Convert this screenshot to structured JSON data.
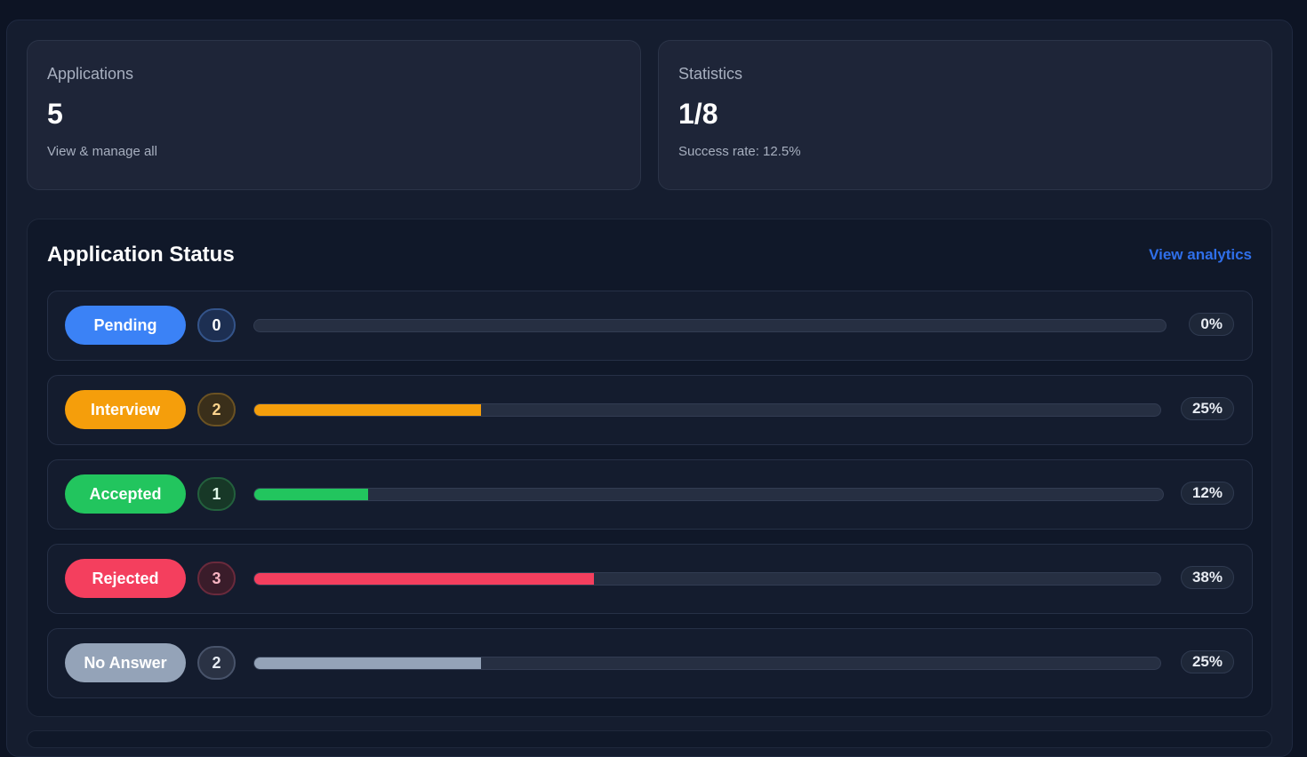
{
  "cards": {
    "applications": {
      "label": "Applications",
      "value": "5",
      "sub": "View & manage all"
    },
    "statistics": {
      "label": "Statistics",
      "value": "1/8",
      "sub": "Success rate: 12.5%"
    }
  },
  "status": {
    "title": "Application Status",
    "link": "View analytics",
    "rows": [
      {
        "label": "Pending",
        "count": "0",
        "percent": "0%",
        "progress": 0,
        "color": "#3b82f6",
        "count_bg": "#1d2f52",
        "count_border": "#34548a",
        "count_fg": "#ffffff"
      },
      {
        "label": "Interview",
        "count": "2",
        "percent": "25%",
        "progress": 0.25,
        "color": "#f59e0b",
        "count_bg": "#3a2f1a",
        "count_border": "#6b5223",
        "count_fg": "#fbd38d"
      },
      {
        "label": "Accepted",
        "count": "1",
        "percent": "12%",
        "progress": 0.125,
        "color": "#22c55e",
        "count_bg": "#173827",
        "count_border": "#23603d",
        "count_fg": "#dff7e8"
      },
      {
        "label": "Rejected",
        "count": "3",
        "percent": "38%",
        "progress": 0.375,
        "color": "#f43f5e",
        "count_bg": "#3a1c2a",
        "count_border": "#6a2a3c",
        "count_fg": "#f7b4c1"
      },
      {
        "label": "No Answer",
        "count": "2",
        "percent": "25%",
        "progress": 0.25,
        "color": "#94a3b8",
        "count_bg": "#2a3244",
        "count_border": "#48536a",
        "count_fg": "#e6ebf3"
      }
    ]
  }
}
